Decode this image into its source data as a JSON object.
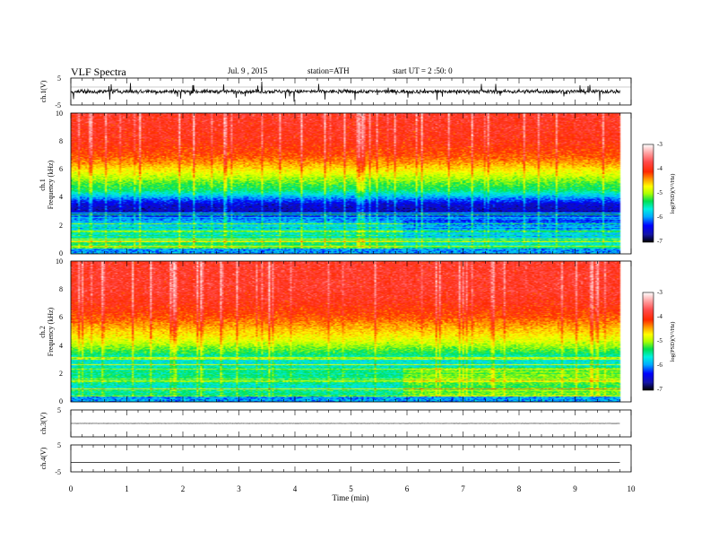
{
  "header": {
    "title": "VLF Spectra",
    "date": "Jul. 9 , 2015",
    "station": "station=ATH",
    "start": "start UT = 2 :50: 0"
  },
  "chart_data": [
    {
      "type": "line",
      "name": "ch1-waveform",
      "ylabel": "ch.1(V)",
      "ylim": [
        -5,
        5
      ],
      "yticks": [
        "5",
        "-5"
      ],
      "baseline": 0,
      "noise_amplitude": 2.2
    },
    {
      "type": "heatmap",
      "name": "ch1-spectrogram",
      "ylabel_line1": "ch.1",
      "ylabel_line2": "Frequency (kHz)",
      "ylim": [
        0,
        10
      ],
      "yticks": [
        "0",
        "2",
        "4",
        "6",
        "8",
        "10"
      ],
      "colorbar_label": "log(PSD)(V²/Hz)",
      "colorbar_ticks": [
        "-3",
        "-4",
        "-5",
        "-6",
        "-7"
      ],
      "colorbar_range": [
        -7,
        -3
      ],
      "profile_log_psd": [
        [
          0.0,
          -4.6
        ],
        [
          0.5,
          -5.3
        ],
        [
          1.0,
          -5.5
        ],
        [
          1.5,
          -5.6
        ],
        [
          2.0,
          -5.8
        ],
        [
          2.5,
          -6.1
        ],
        [
          3.0,
          -6.6
        ],
        [
          3.5,
          -6.5
        ],
        [
          4.0,
          -6.0
        ],
        [
          4.5,
          -5.4
        ],
        [
          5.0,
          -5.2
        ],
        [
          5.5,
          -4.9
        ],
        [
          6.0,
          -4.6
        ],
        [
          6.5,
          -4.3
        ],
        [
          7.0,
          -4.1
        ],
        [
          8.0,
          -3.9
        ],
        [
          10.0,
          -3.8
        ]
      ],
      "end_time_min": 9.8
    },
    {
      "type": "heatmap",
      "name": "ch2-spectrogram",
      "ylabel_line1": "ch.2",
      "ylabel_line2": "Frequency (kHz)",
      "ylim": [
        0,
        10
      ],
      "yticks": [
        "0",
        "2",
        "4",
        "6",
        "8",
        "10"
      ],
      "colorbar_label": "log(PSD)(V²/Hz)",
      "colorbar_ticks": [
        "-3",
        "-4",
        "-5",
        "-6",
        "-7"
      ],
      "colorbar_range": [
        -7,
        -3
      ],
      "profile_log_psd": [
        [
          0.0,
          -4.8
        ],
        [
          0.5,
          -5.5
        ],
        [
          1.0,
          -5.6
        ],
        [
          1.5,
          -5.5
        ],
        [
          2.0,
          -5.4
        ],
        [
          2.5,
          -5.6
        ],
        [
          3.0,
          -5.7
        ],
        [
          3.5,
          -5.3
        ],
        [
          4.0,
          -5.0
        ],
        [
          4.5,
          -4.7
        ],
        [
          5.0,
          -4.5
        ],
        [
          5.5,
          -4.3
        ],
        [
          6.0,
          -4.1
        ],
        [
          6.5,
          -4.0
        ],
        [
          7.0,
          -3.9
        ],
        [
          8.0,
          -3.8
        ],
        [
          10.0,
          -3.8
        ]
      ],
      "end_time_min": 9.8
    },
    {
      "type": "line",
      "name": "ch3-waveform",
      "ylabel": "ch.3(V)",
      "ylim": [
        -5,
        5
      ],
      "yticks": [
        "5"
      ],
      "baseline": 0,
      "noise_amplitude": 0.05
    },
    {
      "type": "line",
      "name": "ch4-waveform",
      "ylabel": "ch.4(V)",
      "ylim": [
        -5,
        5
      ],
      "yticks": [
        "5",
        "-5"
      ],
      "baseline": -1.5,
      "noise_amplitude": 0.0
    }
  ],
  "x_axis": {
    "label": "Time (min)",
    "xlim": [
      0,
      10
    ],
    "ticks": [
      "0",
      "1",
      "2",
      "3",
      "4",
      "5",
      "6",
      "7",
      "8",
      "9",
      "10"
    ]
  },
  "colors": {
    "colormap": [
      "#000000",
      "#1414a8",
      "#0000ff",
      "#00aaff",
      "#00f0e0",
      "#00e050",
      "#b0ff00",
      "#ffff00",
      "#ffa000",
      "#ff2800",
      "#ff4a4a",
      "#ffaaaa",
      "#ffffff"
    ]
  }
}
